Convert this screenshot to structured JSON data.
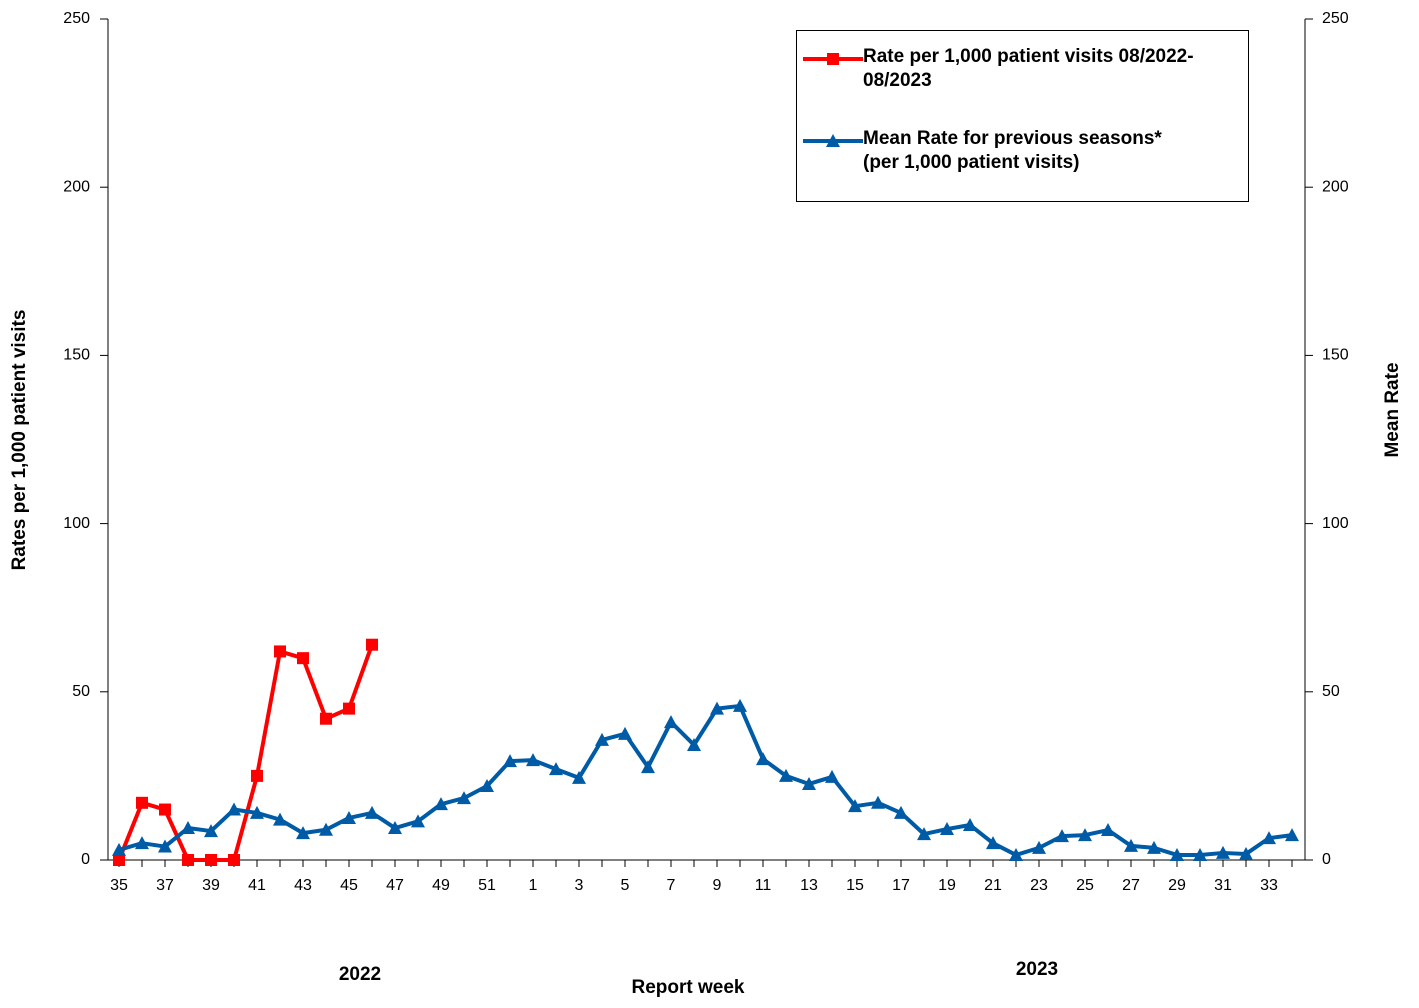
{
  "chart_data": {
    "type": "line",
    "x_label": "Report week",
    "y_label": "Rates per 1,000 patient visits",
    "y2_label": "Mean Rate",
    "annotations": [
      "2022",
      "2023"
    ],
    "categories": [
      "35",
      null,
      "37",
      null,
      "39",
      null,
      "41",
      null,
      "43",
      null,
      "45",
      null,
      "47",
      null,
      "49",
      null,
      "51",
      null,
      "1",
      null,
      "3",
      null,
      "5",
      null,
      "7",
      null,
      "9",
      null,
      "11",
      null,
      "13",
      null,
      "15",
      null,
      "17",
      null,
      "19",
      null,
      "21",
      null,
      "23",
      null,
      "25",
      null,
      "27",
      null,
      "29",
      null,
      "31",
      null,
      "33",
      null
    ],
    "series": [
      {
        "name": "Rate per 1,000 patient visits 08/2022-08/2023",
        "color": "#ff0000",
        "marker": "square",
        "values": [
          0,
          17,
          15,
          0,
          0,
          0,
          25,
          62,
          60,
          42,
          45,
          64,
          null,
          null,
          null,
          null,
          null,
          null,
          null,
          null,
          null,
          null,
          null,
          null,
          null,
          null,
          null,
          null,
          null,
          null,
          null,
          null,
          null,
          null,
          null,
          null,
          null,
          null,
          null,
          null,
          null,
          null,
          null,
          null,
          null,
          null,
          null,
          null,
          null,
          null,
          null,
          null
        ]
      },
      {
        "name": "Mean Rate for previous seasons*\n(per 1,000 patient visits)",
        "color": "#005ba6",
        "marker": "triangle",
        "axis": "y2",
        "values": [
          3,
          5,
          4,
          9.5,
          8.6,
          15,
          14,
          12,
          8,
          9,
          12.5,
          14,
          9.5,
          11.5,
          16.6,
          18.4,
          22,
          29.4,
          29.7,
          27,
          24.4,
          35.7,
          37.5,
          27.6,
          41,
          34.2,
          45,
          45.8,
          30,
          25,
          22.6,
          24.7,
          16,
          17,
          14,
          7.7,
          9.2,
          10.4,
          5,
          1.5,
          3.6,
          7.1,
          7.4,
          8.9,
          4.2,
          3.6,
          1.5,
          1.5,
          2.1,
          1.8,
          6.5,
          7.4
        ]
      }
    ],
    "ylim": [
      0,
      250
    ],
    "yticks": [
      0,
      50,
      100,
      150,
      200,
      250
    ],
    "y2lim": [
      0,
      250
    ],
    "y2ticks": [
      0,
      50,
      100,
      150,
      200,
      250
    ],
    "grid": false,
    "legend": "upper right"
  }
}
